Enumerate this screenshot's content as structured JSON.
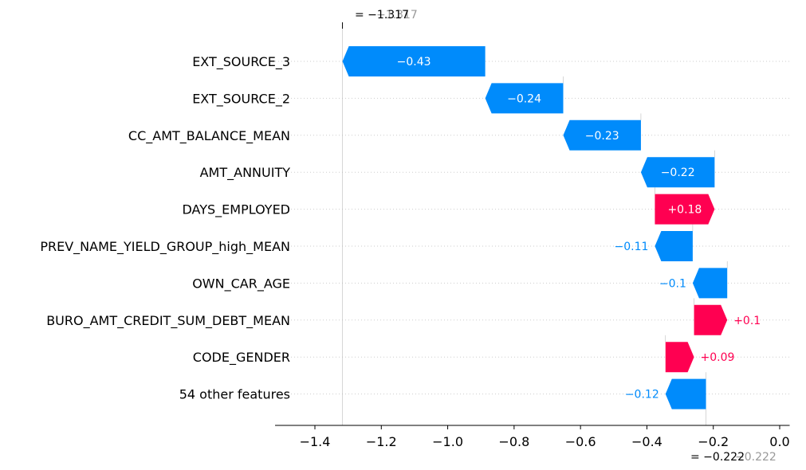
{
  "chart_data": {
    "type": "waterfall",
    "base_value": -0.222,
    "final_value": -1.317,
    "base_label": "= −0.222",
    "base_label_gray": "−0.222",
    "final_label": "= −1.317",
    "final_label_gray": "−1.317",
    "xlim": [
      -1.52,
      0.03
    ],
    "xticks": [
      -1.4,
      -1.2,
      -1.0,
      -0.8,
      -0.6,
      -0.4,
      -0.2,
      0.0
    ],
    "xtick_labels": [
      "−1.4",
      "−1.2",
      "−1.0",
      "−0.8",
      "−0.6",
      "−0.4",
      "−0.2",
      "0.0"
    ],
    "positive_color": "#ff0051",
    "negative_color": "#008bfb",
    "features": [
      {
        "name": "EXT_SOURCE_3",
        "value": -0.43,
        "label": "−0.43",
        "start": -0.887,
        "end": -1.317
      },
      {
        "name": "EXT_SOURCE_2",
        "value": -0.24,
        "label": "−0.24",
        "start": -0.652,
        "end": -0.887
      },
      {
        "name": "CC_AMT_BALANCE_MEAN",
        "value": -0.23,
        "label": "−0.23",
        "start": -0.418,
        "end": -0.652
      },
      {
        "name": "AMT_ANNUITY",
        "value": -0.22,
        "label": "−0.22",
        "start": -0.196,
        "end": -0.418
      },
      {
        "name": "DAYS_EMPLOYED",
        "value": 0.18,
        "label": "+0.18",
        "start": -0.376,
        "end": -0.196
      },
      {
        "name": "PREV_NAME_YIELD_GROUP_high_MEAN",
        "value": -0.11,
        "label": "−0.11",
        "start": -0.262,
        "end": -0.376
      },
      {
        "name": "OWN_CAR_AGE",
        "value": -0.1,
        "label": "−0.1",
        "start": -0.158,
        "end": -0.262
      },
      {
        "name": "BURO_AMT_CREDIT_SUM_DEBT_MEAN",
        "value": 0.1,
        "label": "+0.1",
        "start": -0.258,
        "end": -0.158
      },
      {
        "name": "CODE_GENDER",
        "value": 0.09,
        "label": "+0.09",
        "start": -0.344,
        "end": -0.258
      },
      {
        "name": "54 other features",
        "value": -0.12,
        "label": "−0.12",
        "start": -0.222,
        "end": -0.344
      }
    ]
  }
}
